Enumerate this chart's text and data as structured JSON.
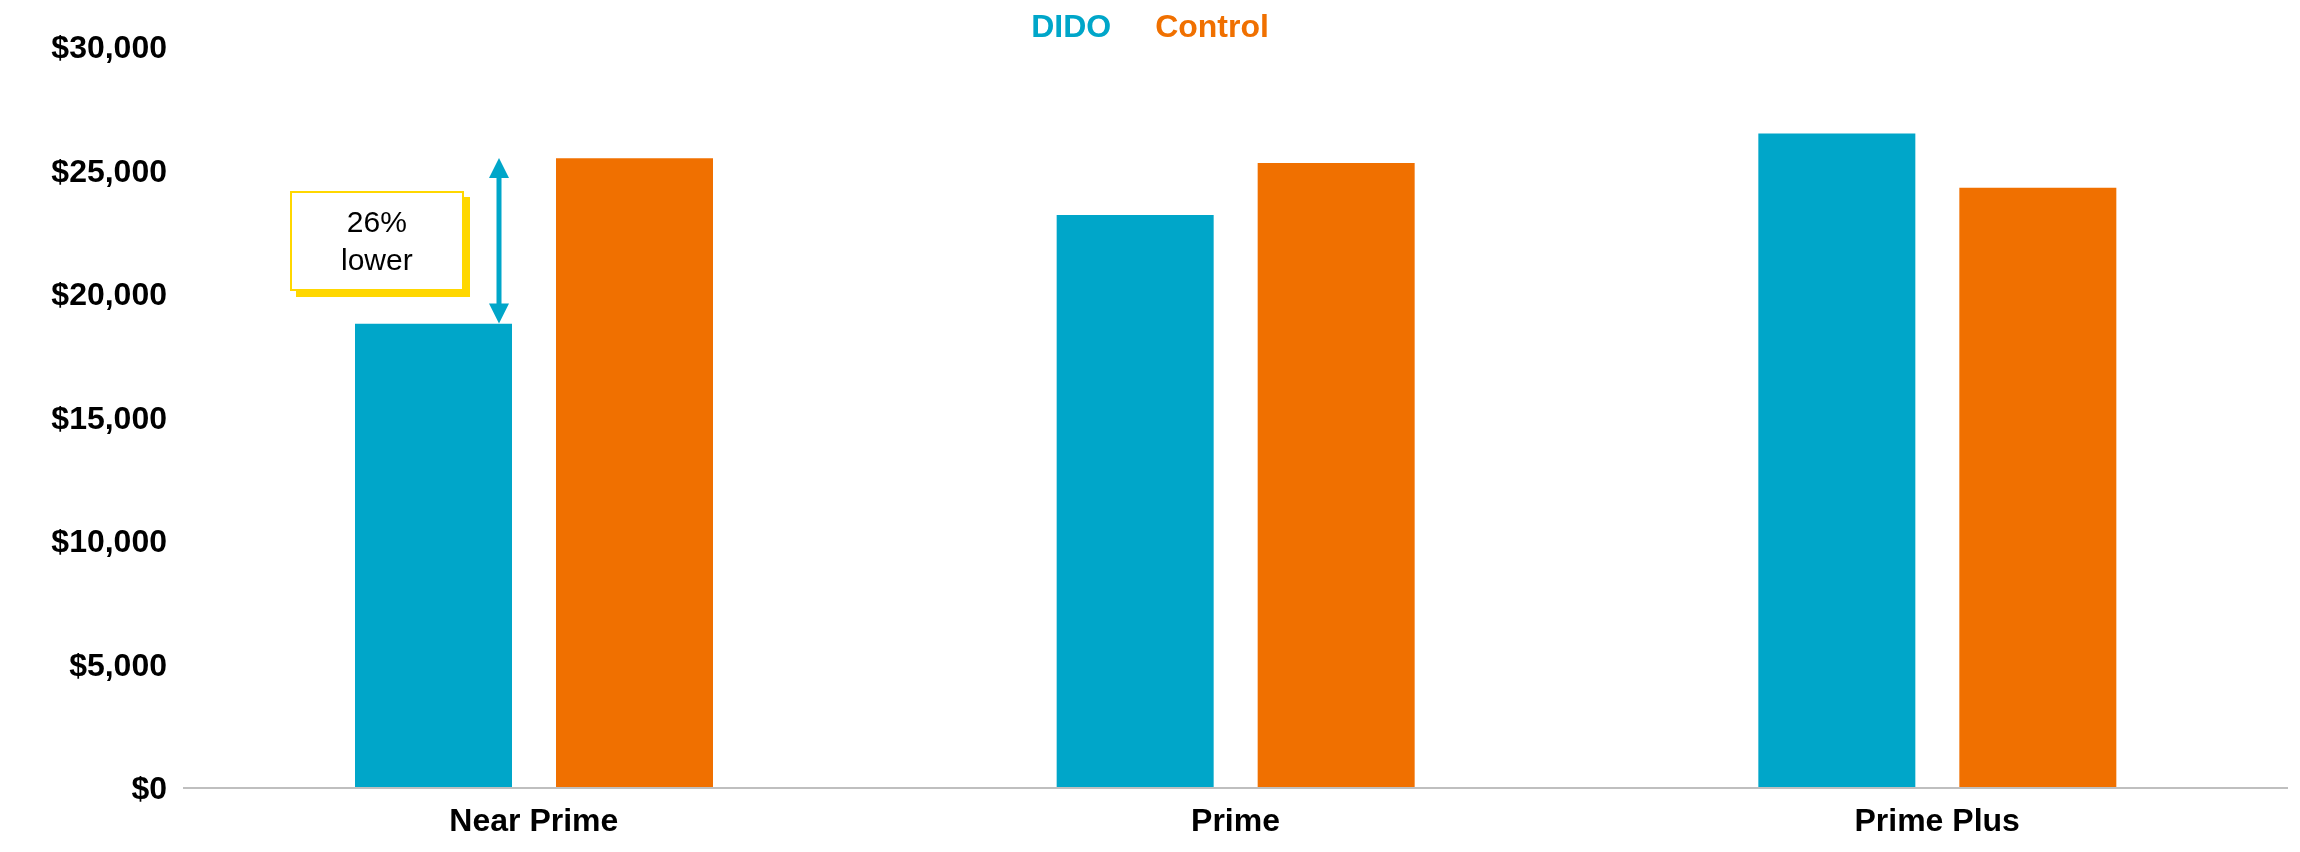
{
  "chart_data": {
    "type": "bar",
    "categories": [
      "Near Prime",
      "Prime",
      "Prime Plus"
    ],
    "series": [
      {
        "name": "DIDO",
        "color": "#00a6c9",
        "values": [
          18800,
          23200,
          26500
        ]
      },
      {
        "name": "Control",
        "color": "#f07000",
        "values": [
          25500,
          25300,
          24300
        ]
      }
    ],
    "ylim": [
      0,
      30000
    ],
    "yticks": [
      {
        "value": 0,
        "label": "$0"
      },
      {
        "value": 5000,
        "label": "$5,000"
      },
      {
        "value": 10000,
        "label": "$10,000"
      },
      {
        "value": 15000,
        "label": "$15,000"
      },
      {
        "value": 20000,
        "label": "$20,000"
      },
      {
        "value": 25000,
        "label": "$25,000"
      },
      {
        "value": 30000,
        "label": "$30,000"
      }
    ],
    "grid": false,
    "legend": "top",
    "annotations": [
      "26%\nlower"
    ]
  }
}
